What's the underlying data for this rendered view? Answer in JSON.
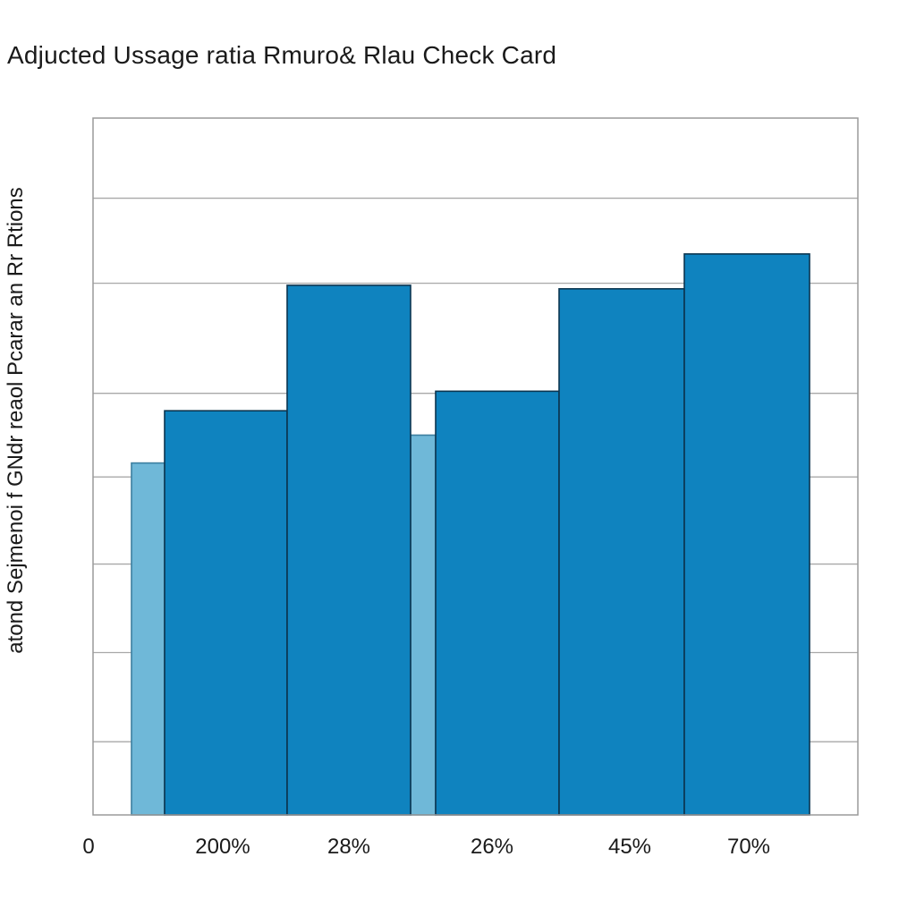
{
  "chart_data": {
    "type": "bar",
    "title": "Adjucted Ussage ratia Rmuro& Rlau Check Card",
    "ylabel": "atond Sejmenoi f GNdr reaol Pcarar an Rr Rtions",
    "xlabel": "",
    "x_tick_labels": [
      "0",
      "200%",
      "28%",
      "26%",
      "45%",
      "70%"
    ],
    "ylim": [
      0,
      100
    ],
    "grid": true,
    "series": [
      {
        "values": [
          50.5,
          54.5
        ],
        "color": "#6fb8d8"
      },
      {
        "values": [
          58,
          76,
          60.8,
          75.5,
          80.5
        ],
        "color": "#0f83bf"
      }
    ],
    "gridlines": [
      10.5,
      23.3,
      36,
      48.5,
      60.5,
      76.3,
      88.5
    ]
  }
}
